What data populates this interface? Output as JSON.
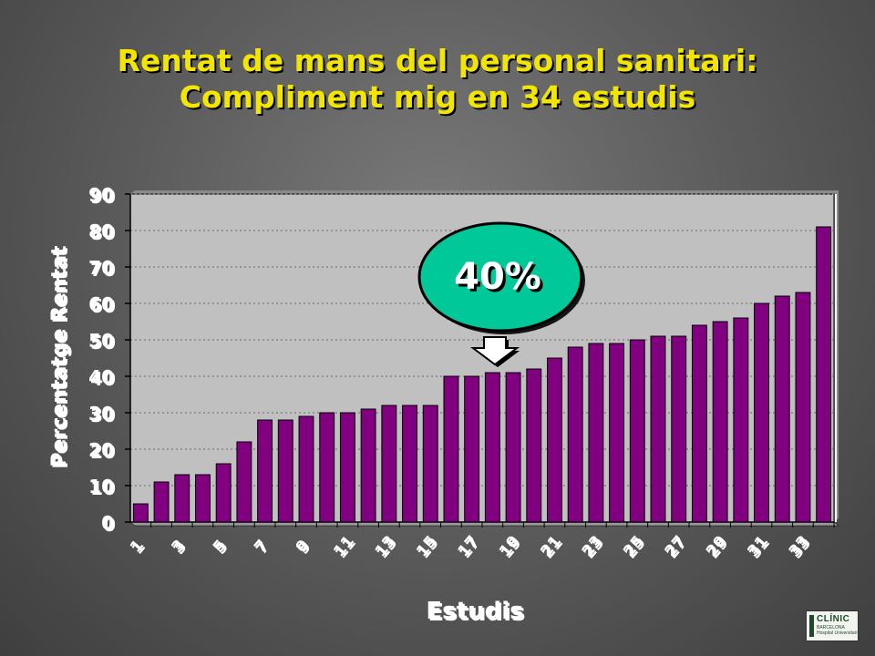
{
  "title_line1": "Rentat de mans del personal sanitari:",
  "title_line2": "Compliment mig en 34 estudis",
  "callout": {
    "label": "40%",
    "fill": "#00c899"
  },
  "logo": {
    "name": "CLÍNIC",
    "sub1": "BARCELONA",
    "sub2": "Hospital Universitari"
  },
  "chart_data": {
    "type": "bar",
    "xlabel": "Estudis",
    "ylabel": "Percentatge Rentat",
    "ylim": [
      0,
      90
    ],
    "yticks": [
      0,
      10,
      20,
      30,
      40,
      50,
      60,
      70,
      80,
      90
    ],
    "grid": true,
    "bar_color": "#800080",
    "plot_bg": "#c0c0c0",
    "categories": [
      "1",
      "2",
      "3",
      "4",
      "5",
      "6",
      "7",
      "8",
      "9",
      "10",
      "11",
      "12",
      "13",
      "14",
      "15",
      "16",
      "17",
      "18",
      "19",
      "20",
      "21",
      "22",
      "23",
      "24",
      "25",
      "26",
      "27",
      "28",
      "29",
      "30",
      "31",
      "32",
      "33",
      "34"
    ],
    "xtick_labels": [
      "1",
      "3",
      "5",
      "7",
      "9",
      "11",
      "13",
      "15",
      "17",
      "19",
      "21",
      "23",
      "25",
      "27",
      "29",
      "31",
      "33"
    ],
    "values": [
      5,
      11,
      13,
      13,
      16,
      22,
      28,
      28,
      29,
      30,
      30,
      31,
      32,
      32,
      32,
      40,
      40,
      41,
      41,
      42,
      45,
      48,
      49,
      49,
      50,
      51,
      51,
      54,
      55,
      56,
      60,
      62,
      63,
      81
    ]
  }
}
